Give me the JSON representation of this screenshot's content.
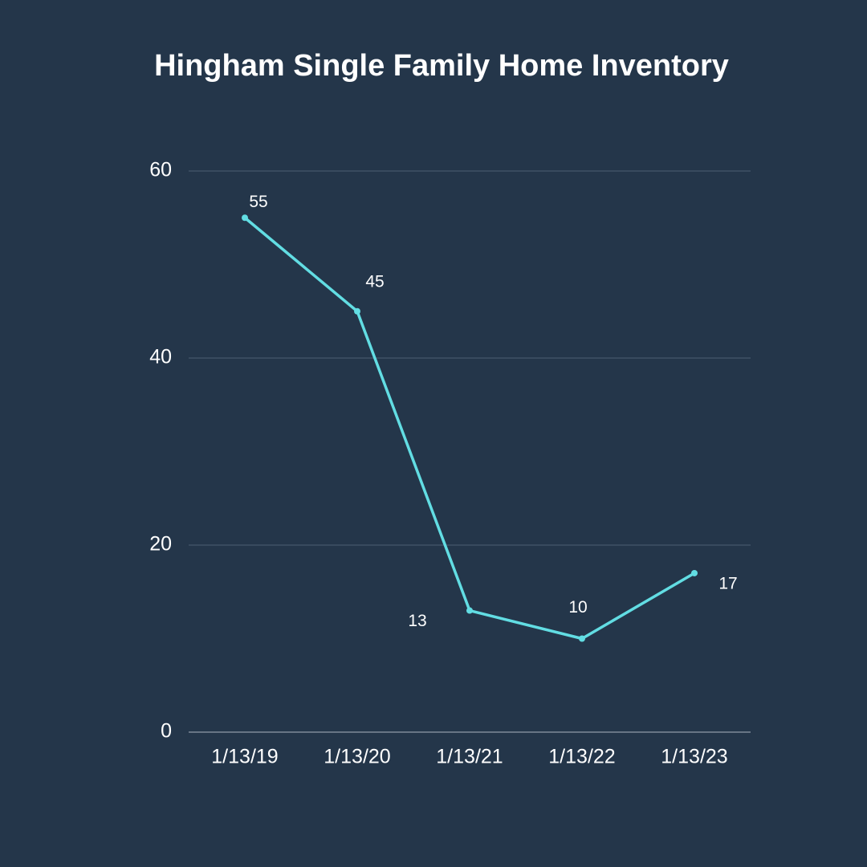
{
  "chart_data": {
    "type": "line",
    "title": "Hingham Single Family Home Inventory",
    "categories": [
      "1/13/19",
      "1/13/20",
      "1/13/21",
      "1/13/22",
      "1/13/23"
    ],
    "values": [
      55,
      45,
      13,
      10,
      17
    ],
    "color": "#62dde3",
    "ylim": [
      0,
      60
    ],
    "yticks": [
      0,
      20,
      40,
      60
    ],
    "grid": true
  }
}
